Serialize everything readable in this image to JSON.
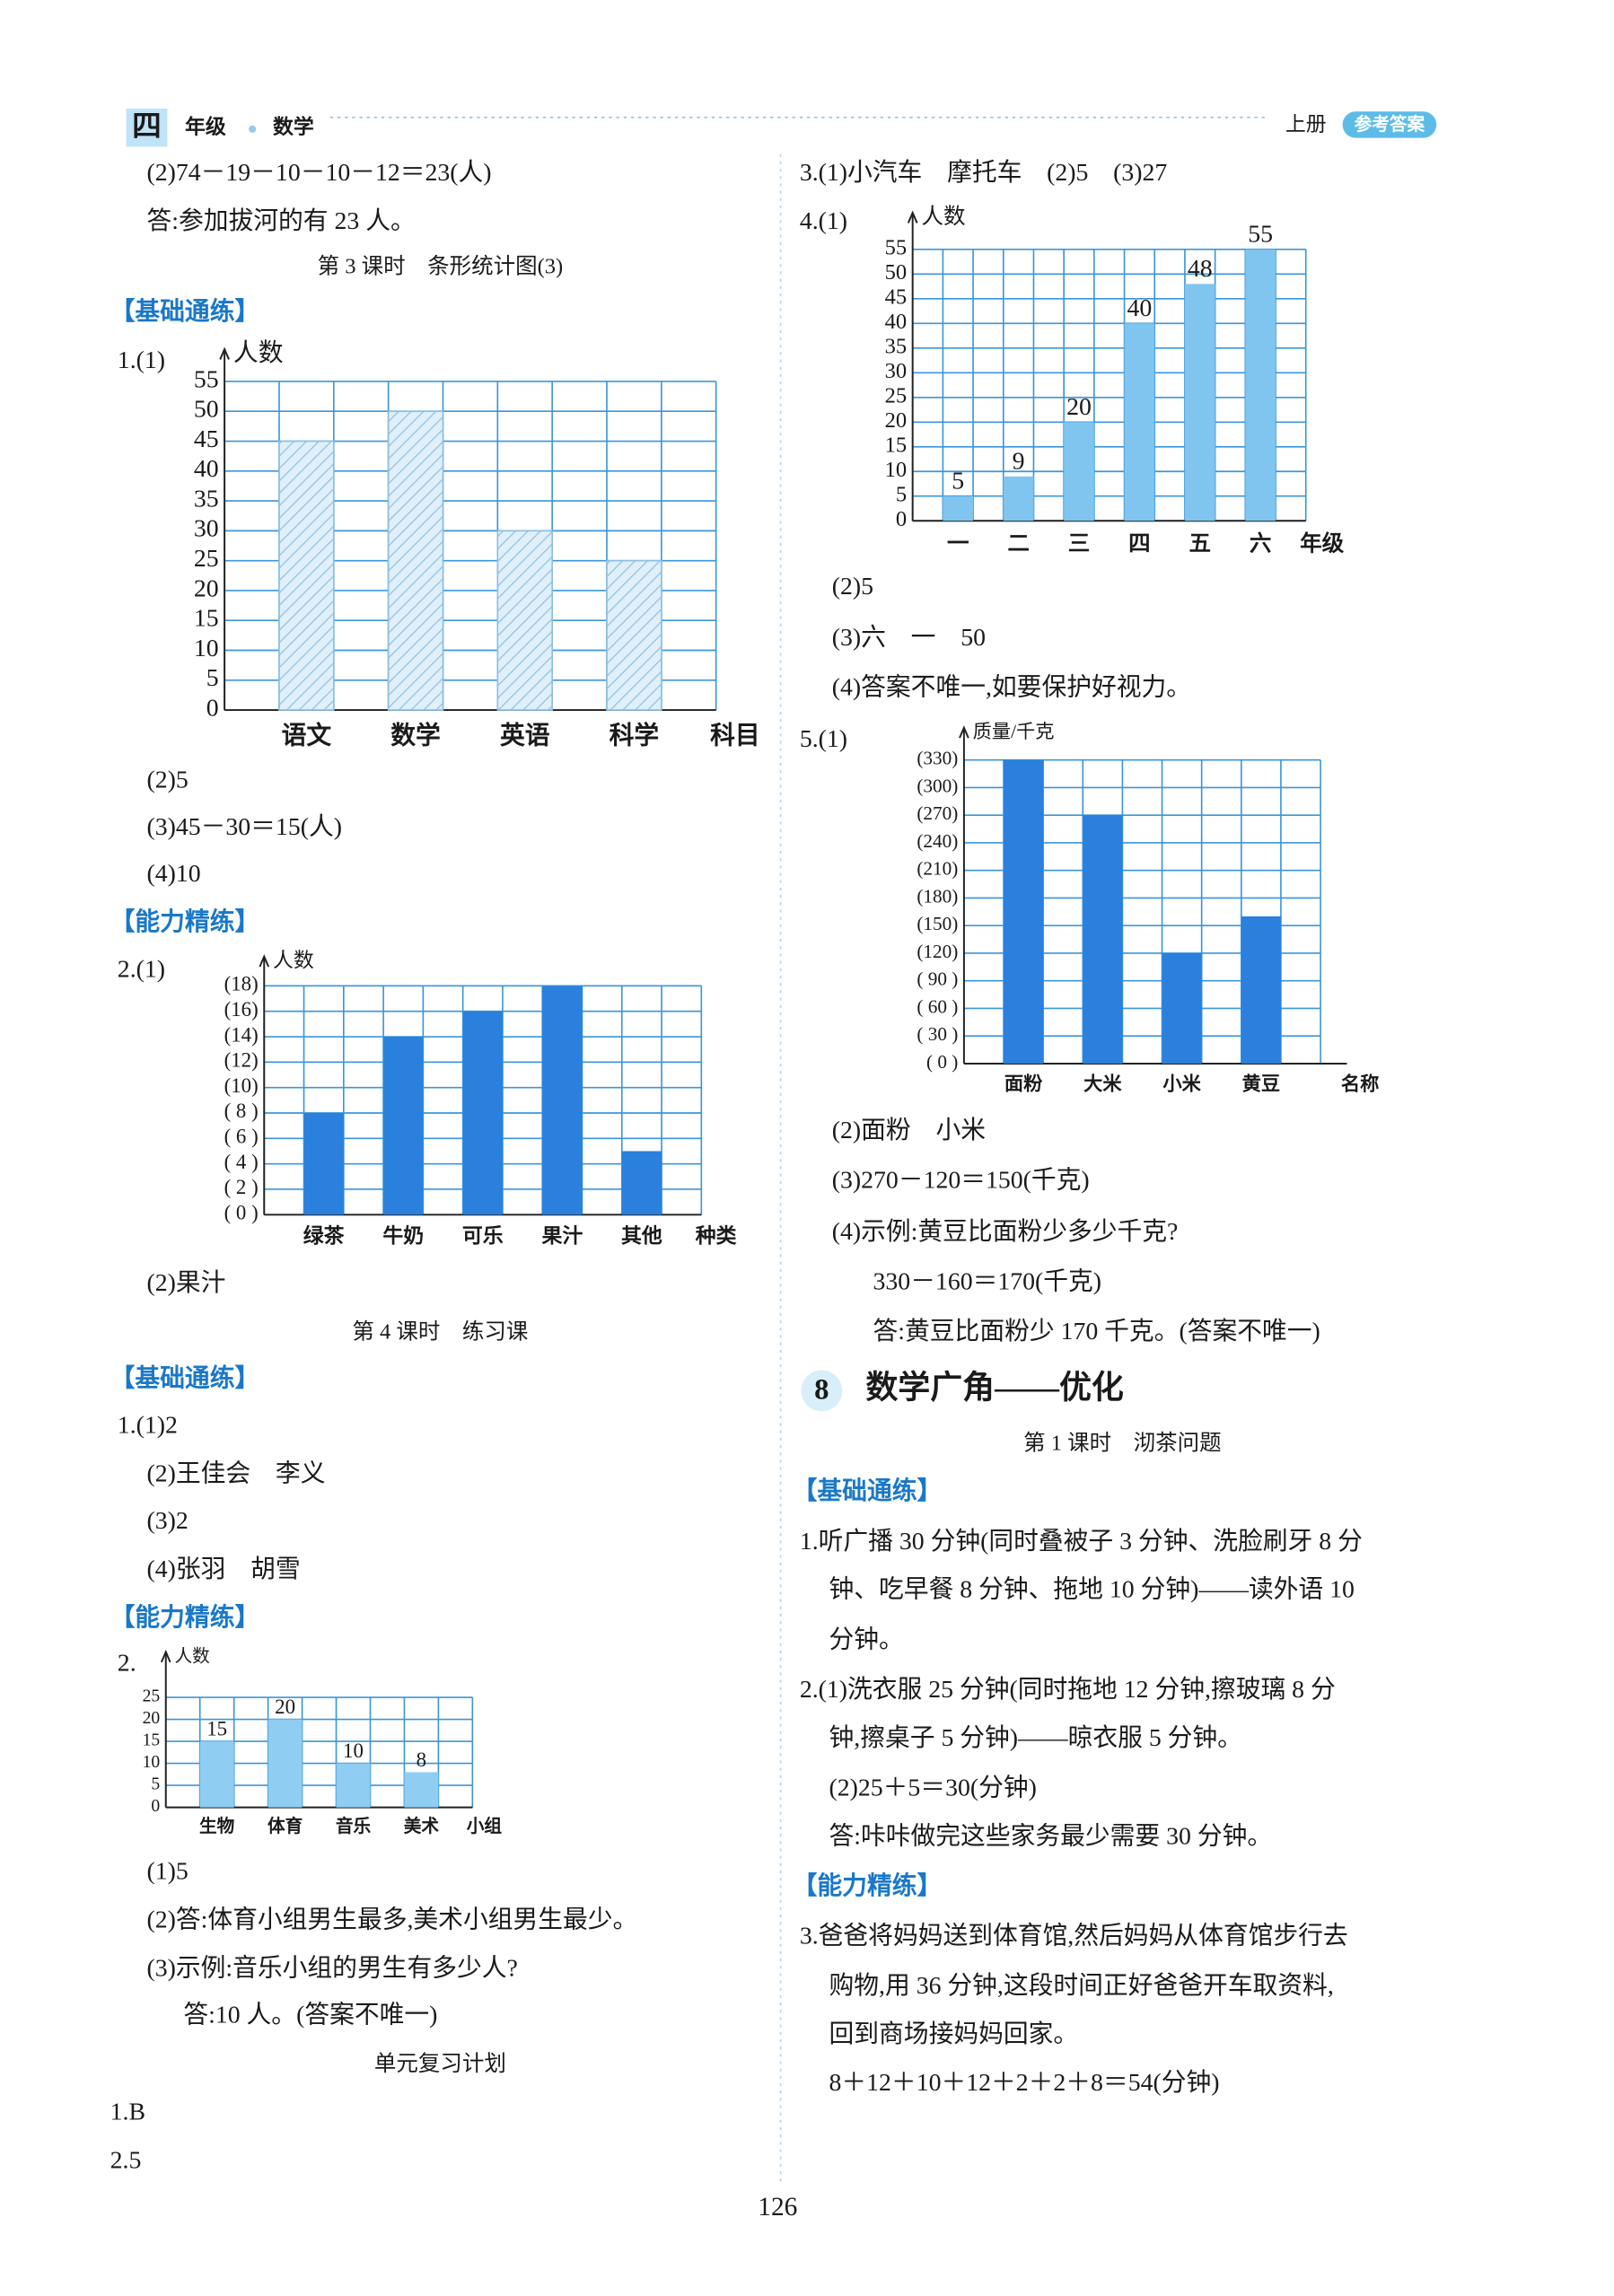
{
  "header": {
    "grade": "四",
    "grade_label": "年级",
    "subject": "数学",
    "volume": "上册",
    "badge": "参考答案"
  },
  "left_column": [
    "(2)74－19－10－10－12＝23(人)",
    "答:参加拔河的有 23 人。",
    "第 3 课时　条形统计图(3)",
    "【基础通练】",
    "1.(1)",
    "(2)5",
    "(3)45－30＝15(人)",
    "(4)10",
    "【能力精练】",
    "2.(1)",
    "(2)果汁",
    "第 4 课时　练习课",
    "【基础通练】",
    "1.(1)2",
    "(2)王佳会　李义",
    "(3)2",
    "(4)张羽　胡雪",
    "【能力精练】",
    "2.",
    "(1)5",
    "(2)答:体育小组男生最多,美术小组男生最少。",
    "(3)示例:音乐小组的男生有多少人?",
    "答:10 人。(答案不唯一)",
    "单元复习计划",
    "1.B",
    "2.5"
  ],
  "right_column": [
    "3.(1)小汽车　摩托车　(2)5　(3)27",
    "4.(1)",
    "(2)5",
    "(3)六　一　50",
    "(4)答案不唯一,如要保护好视力。",
    "5.(1)",
    "(2)面粉　小米",
    "(3)270－120＝150(千克)",
    "(4)示例:黄豆比面粉少多少千克?",
    "330－160＝170(千克)",
    "答:黄豆比面粉少 170 千克。(答案不唯一)",
    "第 1 课时　沏茶问题",
    "【基础通练】",
    "1.听广播 30 分钟(同时叠被子 3 分钟、洗脸刷牙 8 分",
    "钟、吃早餐 8 分钟、拖地 10 分钟)——读外语 10",
    "分钟。",
    "2.(1)洗衣服 25 分钟(同时拖地 12 分钟,擦玻璃 8 分",
    "钟,擦桌子 5 分钟)——晾衣服 5 分钟。",
    "(2)25＋5＝30(分钟)",
    "答:咔咔做完这些家务最少需要 30 分钟。",
    "【能力精练】",
    "3.爸爸将妈妈送到体育馆,然后妈妈从体育馆步行去",
    "购物,用 36 分钟,这段时间正好爸爸开车取资料,",
    "回到商场接妈妈回家。",
    "8＋12＋10＋12＋2＋2＋8＝54(分钟)"
  ],
  "section": {
    "number": "8",
    "title": "数学广角——优化"
  },
  "page_number": "126",
  "chart_data": [
    {
      "type": "bar",
      "y_label": "人数",
      "x_label": "科目",
      "categories": [
        "语文",
        "数学",
        "英语",
        "科学"
      ],
      "values": [
        45,
        50,
        30,
        25
      ],
      "color": "#b9dcf3",
      "hatch": true,
      "ylim": [
        0,
        55
      ],
      "yticks": [
        0,
        5,
        10,
        15,
        20,
        25,
        30,
        35,
        40,
        45,
        50,
        55
      ],
      "grid": true
    },
    {
      "type": "bar",
      "y_label": "人数",
      "x_label": "种类",
      "categories": [
        "绿茶",
        "牛奶",
        "可乐",
        "果汁",
        "其他"
      ],
      "values": [
        8,
        14,
        16,
        18,
        5
      ],
      "color": "#2a80dc",
      "ylim": [
        0,
        18
      ],
      "yticks": [
        {
          "value": 0,
          "label": "( 0 )"
        },
        {
          "value": 2,
          "label": "( 2 )"
        },
        {
          "value": 4,
          "label": "( 4 )"
        },
        {
          "value": 6,
          "label": "( 6 )"
        },
        {
          "value": 8,
          "label": "( 8 )"
        },
        {
          "value": 10,
          "label": "(10)"
        },
        {
          "value": 12,
          "label": "(12)"
        },
        {
          "value": 14,
          "label": "(14)"
        },
        {
          "value": 16,
          "label": "(16)"
        },
        {
          "value": 18,
          "label": "(18)"
        }
      ],
      "grid": true
    },
    {
      "type": "bar",
      "y_label": "人数",
      "x_label": "小组",
      "categories": [
        "生物",
        "体育",
        "音乐",
        "美术"
      ],
      "values": [
        15,
        20,
        10,
        8
      ],
      "color": "#8fcdf2",
      "show_values": true,
      "ylim": [
        0,
        25
      ],
      "yticks": [
        0,
        5,
        10,
        15,
        20,
        25
      ],
      "grid": true
    },
    {
      "type": "bar",
      "y_label": "人数",
      "x_label": "年级",
      "categories": [
        "一",
        "二",
        "三",
        "四",
        "五",
        "六"
      ],
      "values": [
        5,
        9,
        20,
        40,
        48,
        55
      ],
      "color": "#80c5ef",
      "show_values": true,
      "ylim": [
        0,
        55
      ],
      "yticks": [
        0,
        5,
        10,
        15,
        20,
        25,
        30,
        35,
        40,
        45,
        50,
        55
      ],
      "grid": true
    },
    {
      "type": "bar",
      "y_label": "质量/千克",
      "x_label": "名称",
      "categories": [
        "面粉",
        "大米",
        "小米",
        "黄豆"
      ],
      "values": [
        330,
        270,
        120,
        160
      ],
      "color": "#2a80dc",
      "ylim": [
        0,
        330
      ],
      "yticks": [
        {
          "value": 0,
          "label": "( 0 )"
        },
        {
          "value": 30,
          "label": "( 30 )"
        },
        {
          "value": 60,
          "label": "( 60 )"
        },
        {
          "value": 90,
          "label": "( 90 )"
        },
        {
          "value": 120,
          "label": "(120)"
        },
        {
          "value": 150,
          "label": "(150)"
        },
        {
          "value": 180,
          "label": "(180)"
        },
        {
          "value": 210,
          "label": "(210)"
        },
        {
          "value": 240,
          "label": "(240)"
        },
        {
          "value": 270,
          "label": "(270)"
        },
        {
          "value": 300,
          "label": "(300)"
        },
        {
          "value": 330,
          "label": "(330)"
        }
      ],
      "grid": true
    }
  ]
}
